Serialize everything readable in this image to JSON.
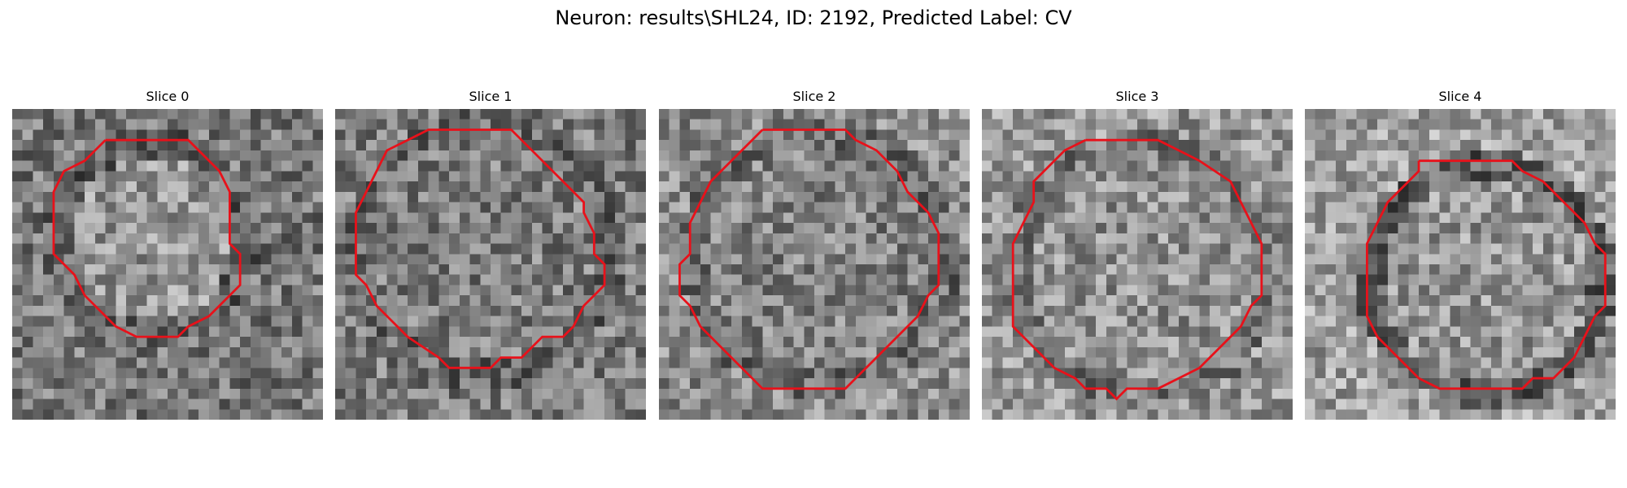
{
  "figure": {
    "title": "Neuron: results\\SHL24, ID: 2192, Predicted Label: CV"
  },
  "panels": [
    {
      "title": "Slice 0"
    },
    {
      "title": "Slice 1"
    },
    {
      "title": "Slice 2"
    },
    {
      "title": "Slice 3"
    },
    {
      "title": "Slice 4"
    }
  ],
  "colors": {
    "contour": "#e8111a",
    "background": "#ffffff",
    "text": "#000000"
  }
}
